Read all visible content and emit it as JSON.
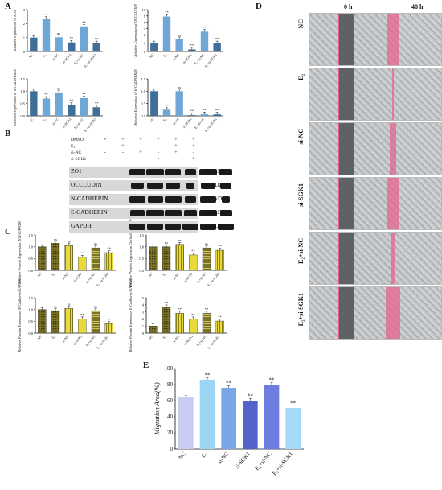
{
  "panels": {
    "A": "A",
    "B": "B",
    "C": "C",
    "D": "D",
    "E": "E"
  },
  "categories_A": [
    "NC",
    "E₂",
    "si-NC",
    "si-SGK1",
    "E₂+si-NC",
    "E₂+si-SGK1"
  ],
  "categories_C": [
    "NC",
    "E₂",
    "si-NC",
    "si-SGK1",
    "E₂+si-NC",
    "E₂+si-SGK1"
  ],
  "colors": {
    "a_bars": "#3f6f99",
    "a_bars_light": "#6ea6d6",
    "c_olive": "#7c7424",
    "c_yellow": "#e8da3a",
    "e_b1": "#c7cdf2",
    "e_b2": "#9bd6f4",
    "e_b3": "#7aa6e6",
    "e_b4": "#5463c9",
    "e_b5": "#6d7ee0",
    "e_b6": "#a6d9f7"
  },
  "sig": "**",
  "sig_ns": "ns",
  "blot": {
    "conditions": [
      "DMSO",
      "E₂",
      "si-NC",
      "si-SGK1"
    ],
    "signs": [
      [
        "+",
        "+",
        "+",
        "+",
        "+",
        "+"
      ],
      [
        "-",
        "+",
        "-",
        "-",
        "+",
        "+"
      ],
      [
        "-",
        "-",
        "+",
        "-",
        "+",
        "-"
      ],
      [
        "-",
        "-",
        "-",
        "+",
        "-",
        "+"
      ]
    ],
    "rows": [
      {
        "name": "ZO1",
        "kda": "180 kDa"
      },
      {
        "name": "OCCLUDIN",
        "kda": "60 kDa"
      },
      {
        "name": "N-CADHERIN",
        "kda": "125 kDa"
      },
      {
        "name": "E-CADHERIN",
        "kda": "135 kDa"
      },
      {
        "name": "GAPDH",
        "kda": "36 kDa"
      }
    ]
  },
  "wound": {
    "col_0": "0 h",
    "col_48": "48 h",
    "rows": [
      "NC",
      "E₂",
      "si-NC",
      "si-SGK1",
      "E₂+si-NC",
      "E₂+si-SGK1"
    ]
  },
  "chart_data": [
    {
      "panel": "A",
      "type": "bar",
      "ylabel": "Relative Expression of ZO1",
      "categories": [
        "NC",
        "E₂",
        "si-NC",
        "si-SGK1",
        "E₂+si-NC",
        "E₂+si-SGK1"
      ],
      "values": [
        1.0,
        2.35,
        1.02,
        0.65,
        1.8,
        0.6
      ],
      "ylim": [
        0,
        3
      ],
      "ticks": [
        "0",
        "1",
        "2",
        "3"
      ]
    },
    {
      "panel": "A",
      "type": "bar",
      "ylabel": "Relative Expression of OCCLUDIN",
      "categories": [
        "NC",
        "E₂",
        "si-NC",
        "si-SGK1",
        "E₂+si-NC",
        "E₂+si-SGK1"
      ],
      "values": [
        1.0,
        7.8,
        1.5,
        0.25,
        3.0,
        1.0
      ],
      "ylim": [
        0,
        10
      ],
      "ticks": [
        "0",
        "1",
        "2",
        "4",
        "6",
        "8",
        "10"
      ]
    },
    {
      "panel": "A",
      "type": "bar",
      "ylabel": "Relative Expression of N-CADHERIN",
      "categories": [
        "NC",
        "E₂",
        "si-NC",
        "si-SGK1",
        "E₂+si-NC",
        "E₂+si-SGK1"
      ],
      "values": [
        1.0,
        0.7,
        0.95,
        0.45,
        0.72,
        0.35
      ],
      "ylim": [
        0,
        1.5
      ],
      "ticks": [
        "0.0",
        "0.5",
        "1.0",
        "1.5"
      ]
    },
    {
      "panel": "A",
      "type": "bar",
      "ylabel": "Relative Expression of E-CADHERIN",
      "categories": [
        "NC",
        "E₂",
        "si-NC",
        "si-SGK1",
        "E₂+si-NC",
        "E₂+si-SGK1"
      ],
      "values": [
        1.0,
        0.25,
        1.0,
        0.03,
        0.07,
        0.06
      ],
      "ylim": [
        0,
        1.5
      ],
      "ticks": [
        "0.0",
        "0.5",
        "1.0",
        "1.5"
      ]
    },
    {
      "panel": "C",
      "type": "bar",
      "ylabel": "Relative Protein Expression ZO1/GAPDH",
      "categories": [
        "NC",
        "E₂",
        "si-NC",
        "si-SGK1",
        "E₂+si-NC",
        "E₂+si-SGK1"
      ],
      "values": [
        1.0,
        1.15,
        1.05,
        0.55,
        0.95,
        0.75
      ],
      "ylim": [
        0,
        1.5
      ],
      "ticks": [
        "0.0",
        "0.5",
        "1.0",
        "1.5"
      ]
    },
    {
      "panel": "C",
      "type": "bar",
      "ylabel": "Relative Protein Expression Occludin/GAPDH",
      "categories": [
        "NC",
        "E₂",
        "si-NC",
        "si-SGK1",
        "E₂+si-NC",
        "E₂+si-SGK1"
      ],
      "values": [
        1.0,
        1.0,
        1.1,
        0.65,
        0.95,
        0.85
      ],
      "ylim": [
        0,
        1.5
      ],
      "ticks": [
        "0.0",
        "0.5",
        "1.0",
        "1.5"
      ]
    },
    {
      "panel": "C",
      "type": "bar",
      "ylabel": "Relative Protein Expression N-Cadherin/GAPDH",
      "categories": [
        "NC",
        "E₂",
        "si-NC",
        "si-SGK1",
        "E₂+si-NC",
        "E₂+si-SGK1"
      ],
      "values": [
        1.0,
        0.95,
        1.05,
        0.6,
        0.95,
        0.4
      ],
      "ylim": [
        0,
        1.5
      ],
      "ticks": [
        "0.0",
        "0.5",
        "1.0",
        "1.5"
      ]
    },
    {
      "panel": "C",
      "type": "bar",
      "ylabel": "Relative Protein Expression E-Cadherin/GAPDH",
      "categories": [
        "NC",
        "E₂",
        "si-NC",
        "si-SGK1",
        "E₂+si-NC",
        "E₂+si-SGK1"
      ],
      "values": [
        1.0,
        3.7,
        2.8,
        2.0,
        2.8,
        1.7
      ],
      "ylim": [
        0,
        5
      ],
      "ticks": [
        "0",
        "1",
        "2",
        "3",
        "4",
        "5"
      ]
    },
    {
      "panel": "E",
      "type": "bar",
      "title": "",
      "ylabel": "Migration Area(%)",
      "categories": [
        "NC",
        "E₂",
        "si-NC",
        "si-SGK1",
        "E₂+si-NC",
        "E₂+si-SGK1"
      ],
      "values": [
        64,
        86,
        76,
        60,
        80,
        51
      ],
      "ylim": [
        0,
        100
      ],
      "ticks": [
        "0",
        "20",
        "40",
        "60",
        "80",
        "100"
      ]
    }
  ]
}
